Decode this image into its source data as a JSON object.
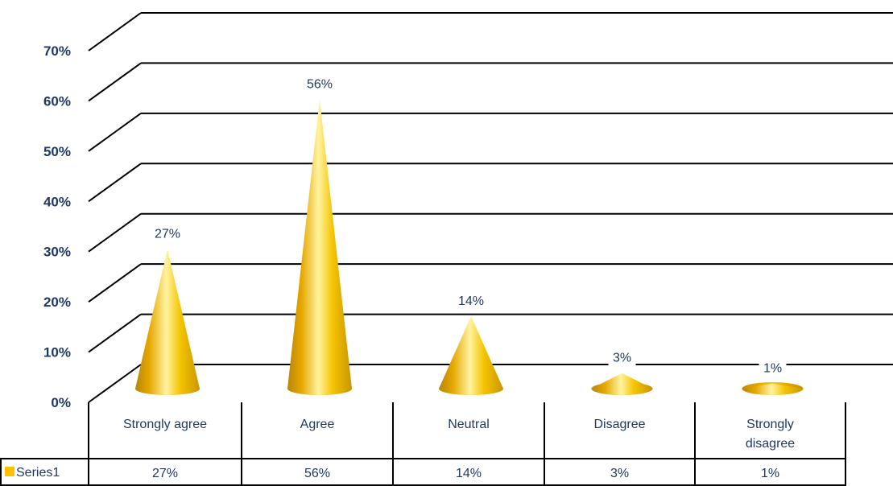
{
  "chart_data": {
    "type": "bar",
    "style": "3d-cone",
    "categories": [
      "Strongly agree",
      "Agree",
      "Neutral",
      "Disagree",
      "Strongly disagree"
    ],
    "category_lines": [
      [
        "Strongly agree"
      ],
      [
        "Agree"
      ],
      [
        "Neutral"
      ],
      [
        "Disagree"
      ],
      [
        "Strongly",
        "disagree"
      ]
    ],
    "series": [
      {
        "name": "Series1",
        "values": [
          27,
          56,
          14,
          3,
          1
        ],
        "labels": [
          "27%",
          "56%",
          "14%",
          "3%",
          "1%"
        ],
        "color": "#ffc000"
      }
    ],
    "yticks": [
      "0%",
      "10%",
      "20%",
      "30%",
      "40%",
      "50%",
      "60%",
      "70%"
    ],
    "ylim": [
      0,
      70
    ],
    "grid": true,
    "data_table": true,
    "legend": "in-data-table"
  }
}
